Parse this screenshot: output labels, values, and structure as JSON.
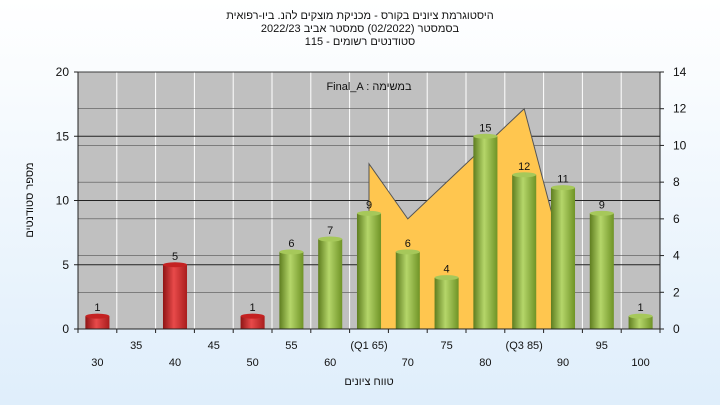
{
  "chart_data": {
    "type": "bar",
    "title_lines": [
      "היסטוגרמת ציונים בקורס - מכניקת מוצקים להנ. ביו-רפואית",
      "בסמסטר  (02/2022)  סמסטר אביב 2022/23",
      "סטודנטים רשומים - 115"
    ],
    "subtitle": "Final_A : במשימה",
    "ylabel": "מספר סטודנטים",
    "xlabel": "טווח ציונים",
    "ylim": [
      0,
      20
    ],
    "y2lim": [
      0,
      14
    ],
    "y_ticks": [
      "0",
      "5",
      "10",
      "15",
      "20"
    ],
    "y2_ticks": [
      "0",
      "2",
      "4",
      "6",
      "8",
      "10",
      "12",
      "14"
    ],
    "x_tick_labels_lower": [
      "30",
      "40",
      "50",
      "60",
      "70",
      "80",
      "90",
      "100"
    ],
    "x_tick_labels_upper": [
      "35",
      "45",
      "55",
      "(Q1 65)",
      "75",
      "(Q3 85)",
      "95"
    ],
    "categories": [
      "30",
      "35",
      "40",
      "45",
      "50",
      "55",
      "60",
      "65",
      "70",
      "75",
      "80",
      "85",
      "90",
      "95",
      "100"
    ],
    "series": [
      {
        "values": [
          1,
          0,
          5,
          0,
          1,
          6,
          7,
          9,
          6,
          4,
          15,
          12,
          11,
          9,
          1
        ]
      }
    ],
    "data_labels": [
      "1",
      "",
      "5",
      "",
      "1",
      "6",
      "7",
      "9",
      "6",
      "4",
      "15",
      "12",
      "11",
      "9",
      "1"
    ],
    "bar_colors": [
      "red",
      "",
      "red",
      "",
      "red",
      "green",
      "green",
      "green",
      "green",
      "green",
      "green",
      "green",
      "green",
      "green",
      "green"
    ],
    "area": {
      "x": [
        "65",
        "70",
        "85",
        "90"
      ],
      "y2": [
        9,
        6,
        12,
        4
      ]
    },
    "colors": {
      "red": "#d42a2a",
      "green": "#8cb23a",
      "area": "#ffc64f",
      "plot_bg": "#c0c0c0"
    },
    "grid": true
  }
}
